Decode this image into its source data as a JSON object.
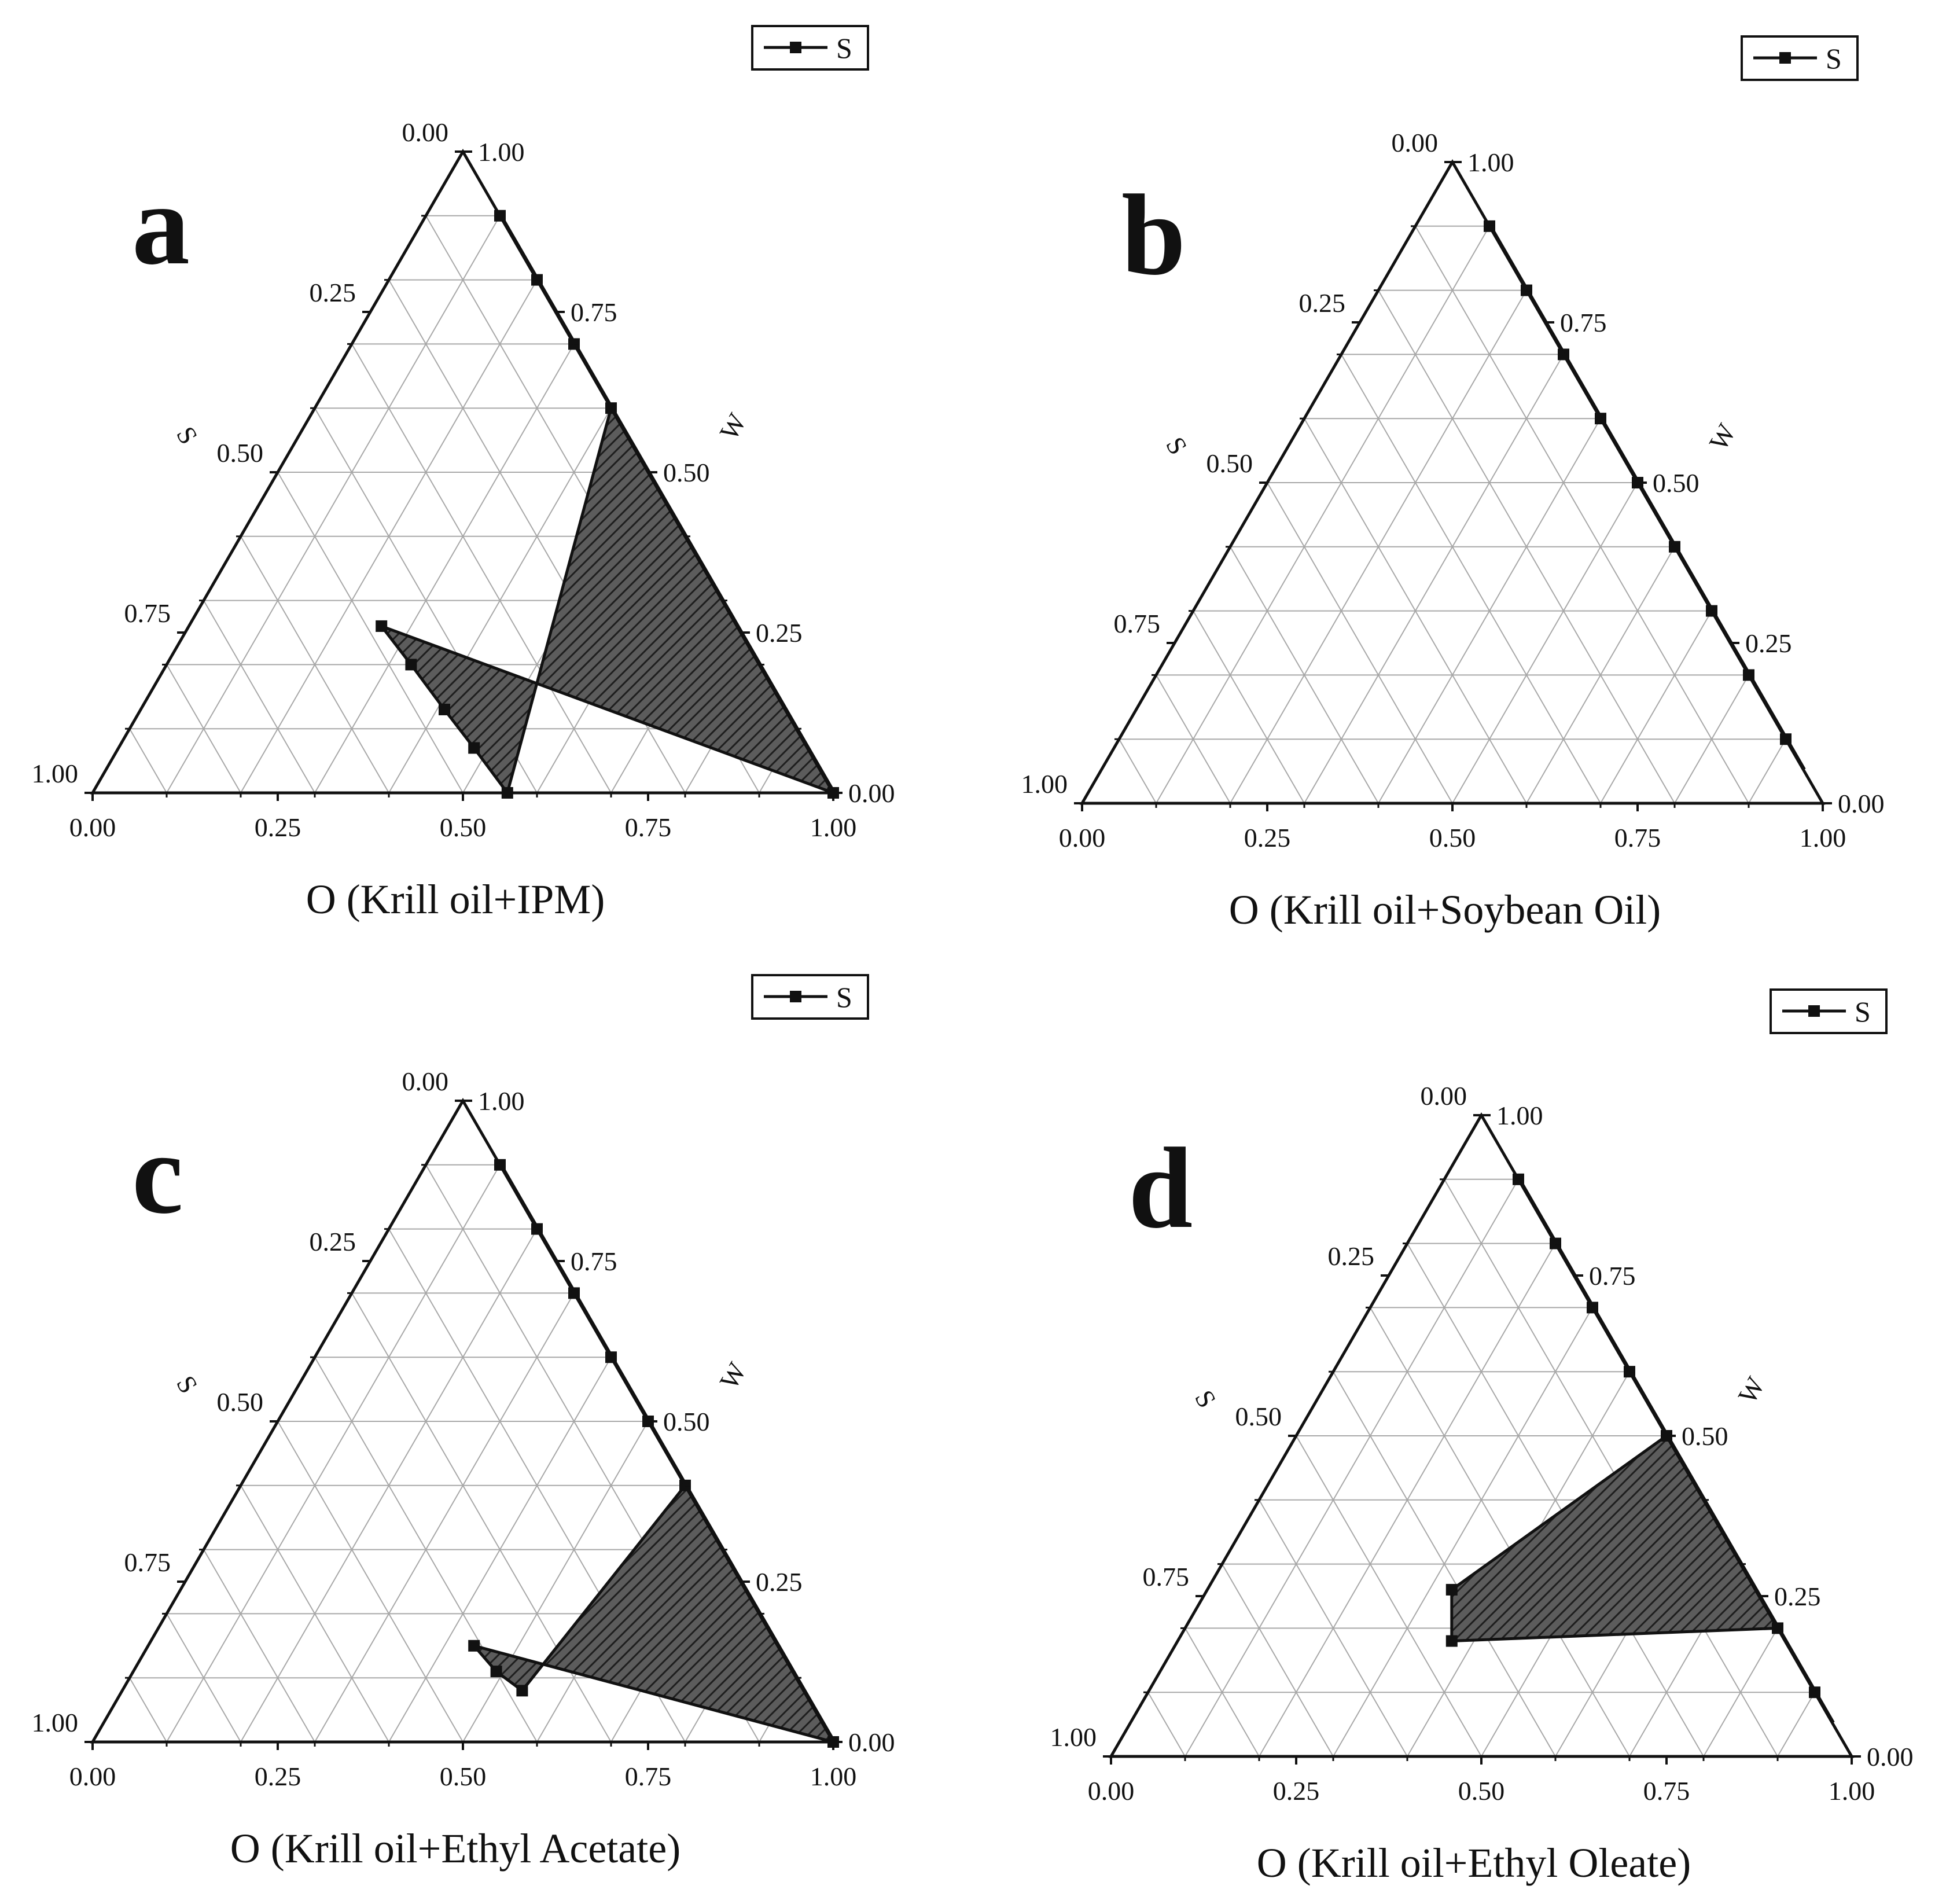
{
  "colors": {
    "axis": "#111111",
    "grid": "#a8a8a8",
    "fill": "#5c5c5c",
    "hatch": "#222222",
    "background": "#ffffff"
  },
  "legend_label": "S",
  "chart_data": [
    {
      "panel_label": "a",
      "type": "ternary",
      "xlabel": "O (Krill oil+IPM)",
      "left_axis_label": "S",
      "right_axis_label": "W",
      "ticks": [
        "0.00",
        "0.25",
        "0.50",
        "0.75",
        "1.00"
      ],
      "legend": "S",
      "grid": true,
      "series": [
        {
          "name": "S",
          "points": [
            {
              "O": 1.0,
              "S": 0.0,
              "W": 0.0
            },
            {
              "O": 0.26,
              "S": 0.48,
              "W": 0.26
            },
            {
              "O": 0.33,
              "S": 0.47,
              "W": 0.2
            },
            {
              "O": 0.41,
              "S": 0.46,
              "W": 0.13
            },
            {
              "O": 0.48,
              "S": 0.45,
              "W": 0.07
            },
            {
              "O": 0.56,
              "S": 0.44,
              "W": 0.0
            },
            {
              "O": 0.4,
              "S": 0.0,
              "W": 0.6
            },
            {
              "O": 0.3,
              "S": 0.0,
              "W": 0.7
            },
            {
              "O": 0.2,
              "S": 0.0,
              "W": 0.8
            },
            {
              "O": 0.1,
              "S": 0.0,
              "W": 0.9
            }
          ],
          "region_point_count": 7
        }
      ]
    },
    {
      "panel_label": "b",
      "type": "ternary",
      "xlabel": "O (Krill oil+Soybean Oil)",
      "left_axis_label": "S",
      "right_axis_label": "W",
      "ticks": [
        "0.00",
        "0.25",
        "0.50",
        "0.75",
        "1.00"
      ],
      "legend": "S",
      "grid": true,
      "series": [
        {
          "name": "S",
          "points": [
            {
              "O": 0.9,
              "S": 0.0,
              "W": 0.1
            },
            {
              "O": 0.8,
              "S": 0.0,
              "W": 0.2
            },
            {
              "O": 0.7,
              "S": 0.0,
              "W": 0.3
            },
            {
              "O": 0.6,
              "S": 0.0,
              "W": 0.4
            },
            {
              "O": 0.5,
              "S": 0.0,
              "W": 0.5
            },
            {
              "O": 0.4,
              "S": 0.0,
              "W": 0.6
            },
            {
              "O": 0.3,
              "S": 0.0,
              "W": 0.7
            },
            {
              "O": 0.2,
              "S": 0.0,
              "W": 0.8
            },
            {
              "O": 0.1,
              "S": 0.0,
              "W": 0.9
            }
          ],
          "region_point_count": 0
        }
      ]
    },
    {
      "panel_label": "c",
      "type": "ternary",
      "xlabel": "O (Krill oil+Ethyl Acetate)",
      "left_axis_label": "S",
      "right_axis_label": "W",
      "ticks": [
        "0.00",
        "0.25",
        "0.50",
        "0.75",
        "1.00"
      ],
      "legend": "S",
      "grid": true,
      "series": [
        {
          "name": "S",
          "points": [
            {
              "O": 1.0,
              "S": 0.0,
              "W": 0.0
            },
            {
              "O": 0.44,
              "S": 0.41,
              "W": 0.15
            },
            {
              "O": 0.49,
              "S": 0.4,
              "W": 0.11
            },
            {
              "O": 0.54,
              "S": 0.38,
              "W": 0.08
            },
            {
              "O": 0.6,
              "S": 0.0,
              "W": 0.4
            },
            {
              "O": 0.5,
              "S": 0.0,
              "W": 0.5
            },
            {
              "O": 0.4,
              "S": 0.0,
              "W": 0.6
            },
            {
              "O": 0.3,
              "S": 0.0,
              "W": 0.7
            },
            {
              "O": 0.2,
              "S": 0.0,
              "W": 0.8
            },
            {
              "O": 0.1,
              "S": 0.0,
              "W": 0.9
            }
          ],
          "region_point_count": 5
        }
      ]
    },
    {
      "panel_label": "d",
      "type": "ternary",
      "xlabel": "O (Krill oil+Ethyl Oleate)",
      "left_axis_label": "S",
      "right_axis_label": "W",
      "ticks": [
        "0.00",
        "0.25",
        "0.50",
        "0.75",
        "1.00"
      ],
      "legend": "S",
      "grid": true,
      "series": [
        {
          "name": "S",
          "points": [
            {
              "O": 0.8,
              "S": 0.0,
              "W": 0.2
            },
            {
              "O": 0.37,
              "S": 0.45,
              "W": 0.18
            },
            {
              "O": 0.33,
              "S": 0.41,
              "W": 0.26
            },
            {
              "O": 0.5,
              "S": 0.0,
              "W": 0.5
            },
            {
              "O": 0.9,
              "S": 0.0,
              "W": 0.1
            },
            {
              "O": 0.4,
              "S": 0.0,
              "W": 0.6
            },
            {
              "O": 0.3,
              "S": 0.0,
              "W": 0.7
            },
            {
              "O": 0.2,
              "S": 0.0,
              "W": 0.8
            },
            {
              "O": 0.1,
              "S": 0.0,
              "W": 0.9
            }
          ],
          "region_point_count": 4
        }
      ]
    }
  ]
}
